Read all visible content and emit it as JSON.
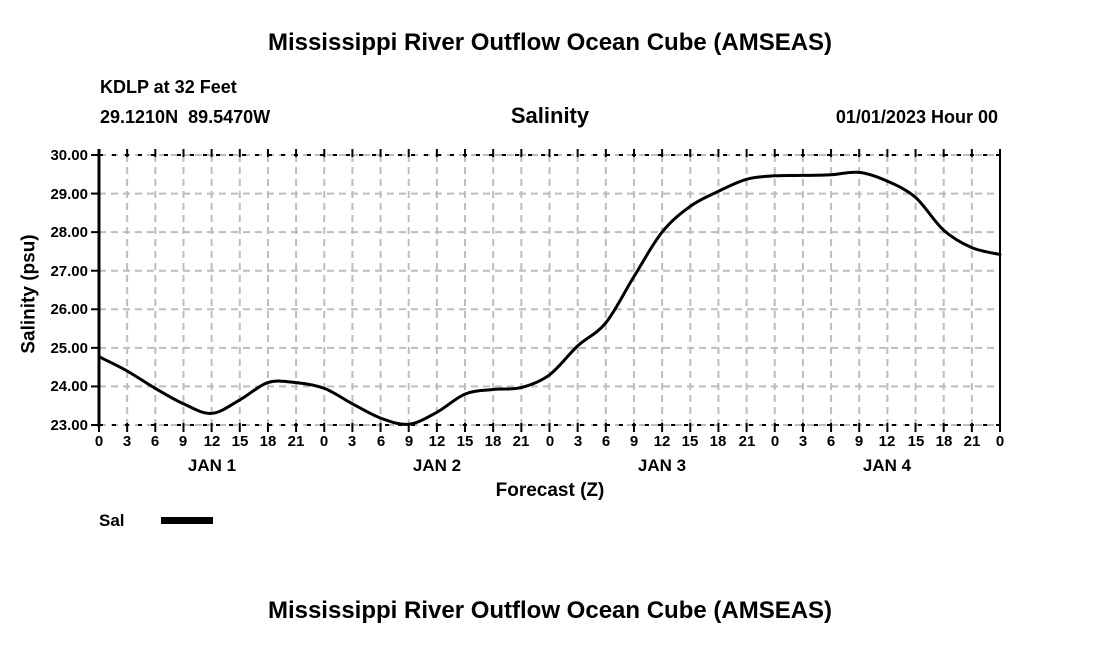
{
  "header": {
    "title": "Mississippi River Outflow Ocean Cube (AMSEAS)",
    "station_line1": "KDLP at 32 Feet",
    "station_line2": "29.1210N  89.5470W",
    "variable_label": "Salinity",
    "run_label": "01/01/2023 Hour 00"
  },
  "footer": {
    "title": "Mississippi River Outflow Ocean Cube (AMSEAS)"
  },
  "legend": {
    "label": "Sal",
    "color": "#000000"
  },
  "colors": {
    "background": "#ffffff",
    "text": "#000000",
    "axis": "#000000",
    "grid": "#bdbdbd",
    "line": "#000000"
  },
  "chart_data": {
    "type": "line",
    "title": "Salinity",
    "supertitle": "Mississippi River Outflow Ocean Cube (AMSEAS)",
    "xlabel": "Forecast (Z)",
    "ylabel": "Salinity (psu)",
    "grid": true,
    "legend_position": "bottom-left",
    "xlim_hours": [
      0,
      96
    ],
    "ylim": [
      23,
      30
    ],
    "y_ticks": [
      23,
      24,
      25,
      26,
      27,
      28,
      29,
      30
    ],
    "y_tick_labels": [
      "23.00",
      "24.00",
      "25.00",
      "26.00",
      "27.00",
      "28.00",
      "29.00",
      "30.00"
    ],
    "x_hours": [
      0,
      3,
      6,
      9,
      12,
      15,
      18,
      21,
      24,
      27,
      30,
      33,
      36,
      39,
      42,
      45,
      48,
      51,
      54,
      57,
      60,
      63,
      66,
      69,
      72,
      75,
      78,
      81,
      84,
      87,
      90,
      93,
      96
    ],
    "x_tick_labels": [
      "0",
      "3",
      "6",
      "9",
      "12",
      "15",
      "18",
      "21",
      "0",
      "3",
      "6",
      "9",
      "12",
      "15",
      "18",
      "21",
      "0",
      "3",
      "6",
      "9",
      "12",
      "15",
      "18",
      "21",
      "0",
      "3",
      "6",
      "9",
      "12",
      "15",
      "18",
      "21",
      "0"
    ],
    "day_labels": [
      {
        "label": "JAN 1",
        "hour": 12
      },
      {
        "label": "JAN 2",
        "hour": 36
      },
      {
        "label": "JAN 3",
        "hour": 60
      },
      {
        "label": "JAN 4",
        "hour": 84
      }
    ],
    "series": [
      {
        "name": "Sal",
        "color": "#000000",
        "values": [
          24.77,
          24.4,
          23.95,
          23.55,
          23.3,
          23.65,
          24.1,
          24.1,
          23.95,
          23.55,
          23.18,
          23.02,
          23.33,
          23.8,
          23.92,
          23.97,
          24.3,
          25.05,
          25.65,
          26.85,
          28.0,
          28.67,
          29.06,
          29.37,
          29.46,
          29.47,
          29.49,
          29.55,
          29.32,
          28.9,
          28.05,
          27.6,
          27.42
        ]
      }
    ]
  }
}
